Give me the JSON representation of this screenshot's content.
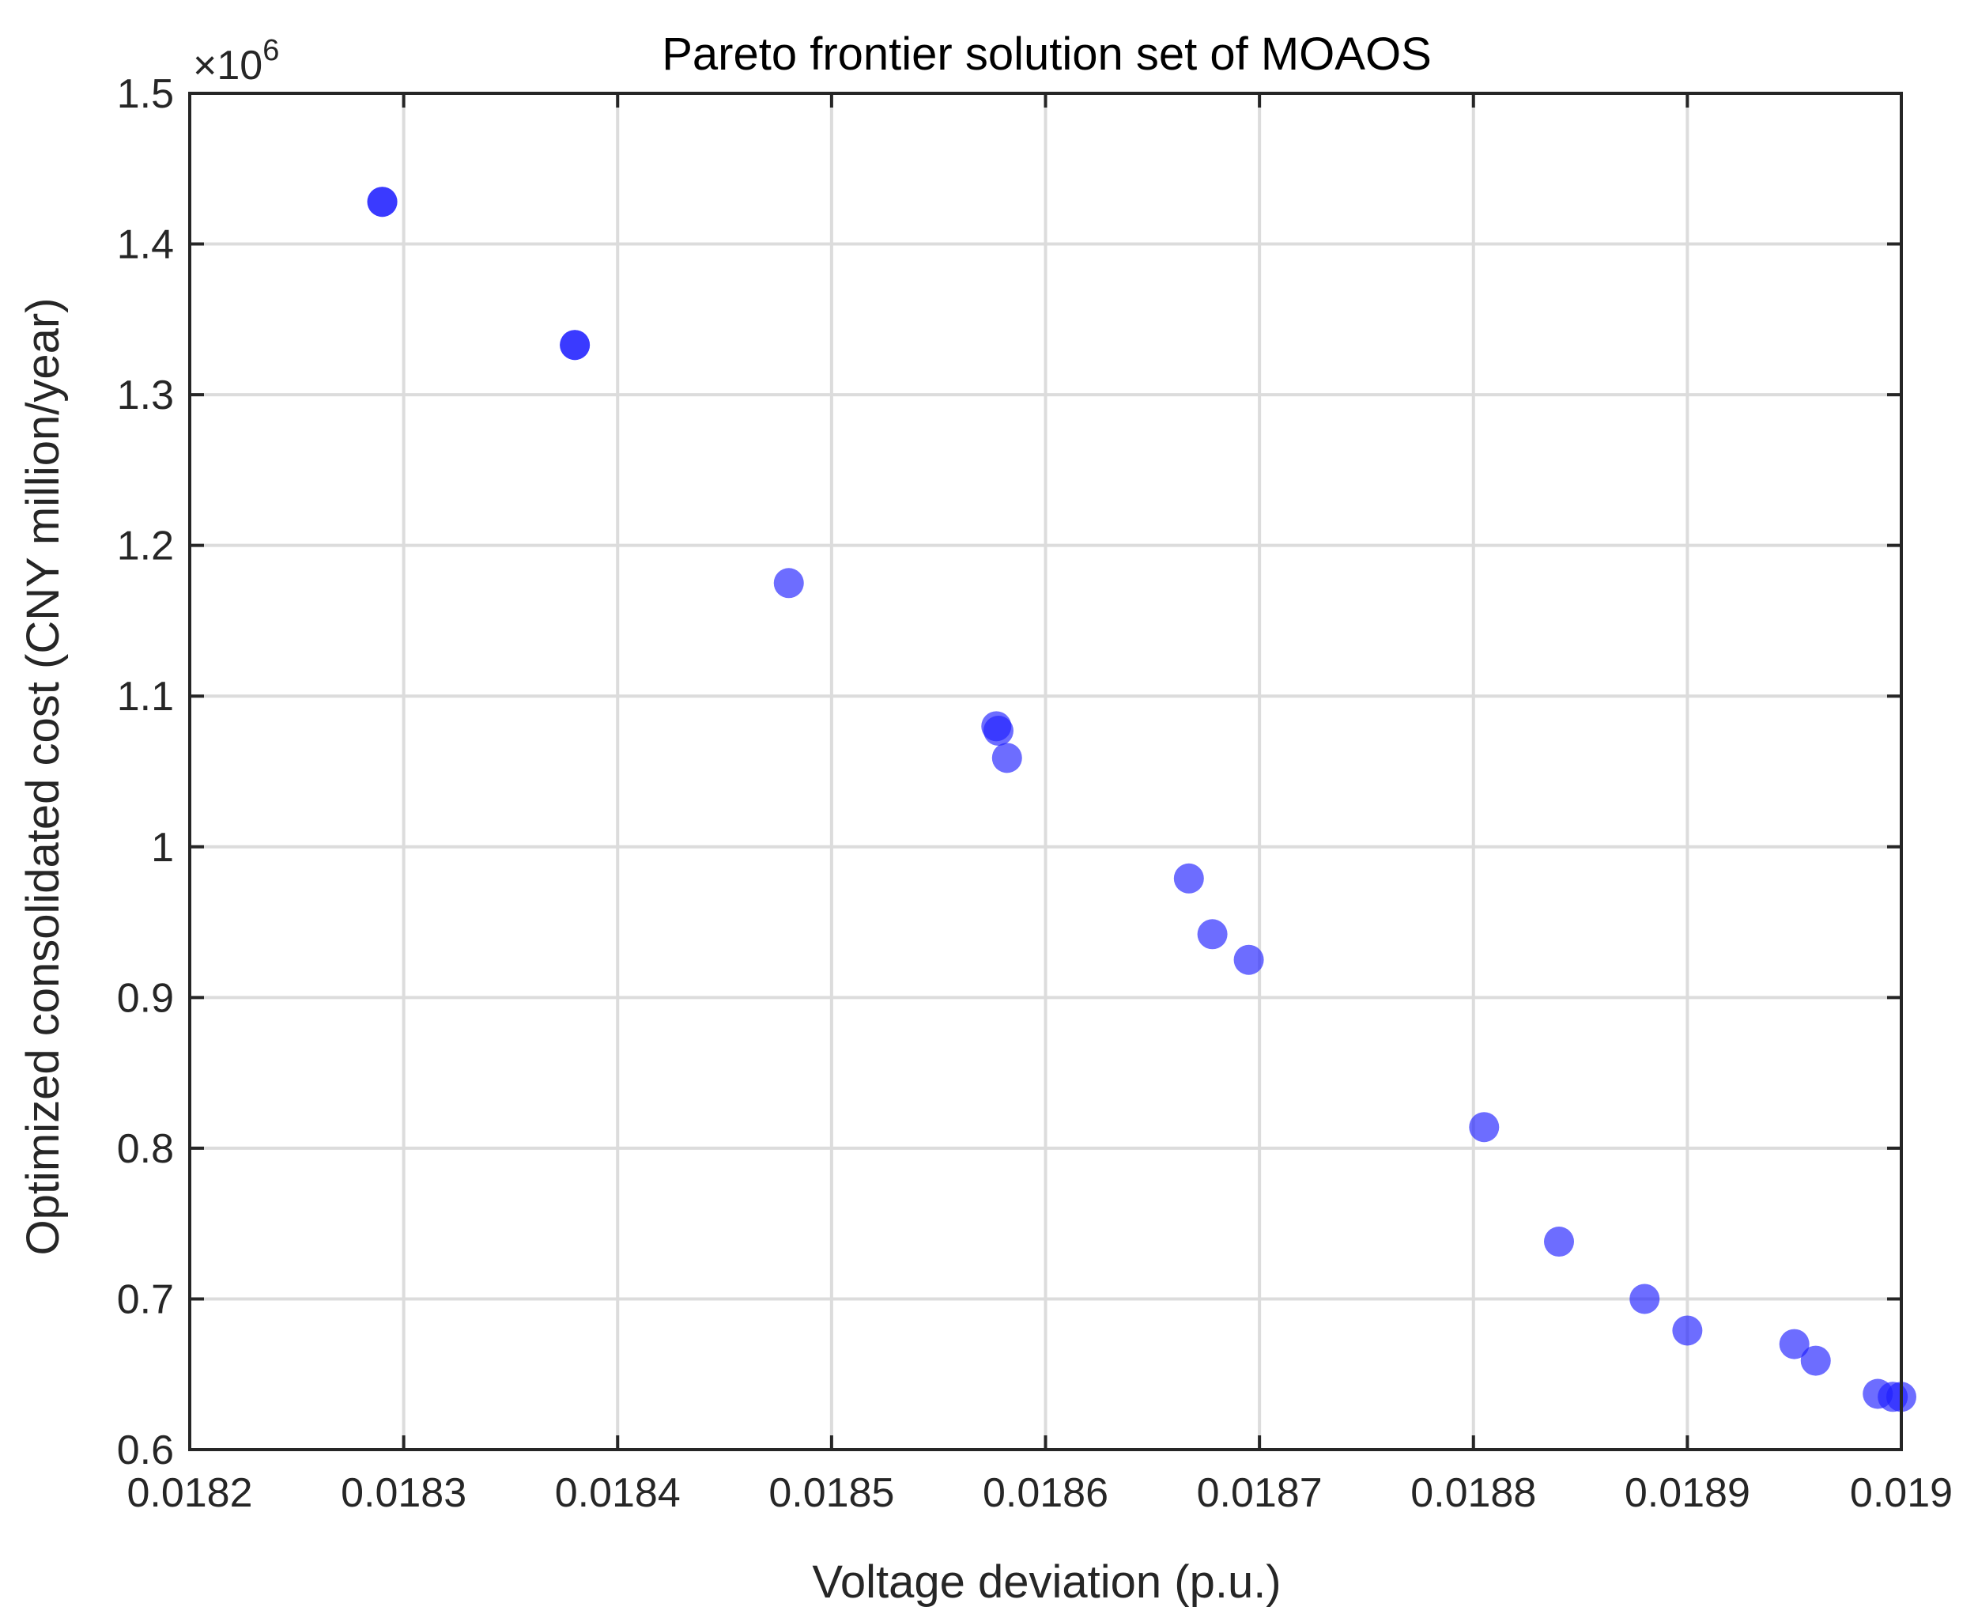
{
  "chart_data": {
    "type": "scatter",
    "title": "Pareto frontier solution set of MOAOS",
    "xlabel": "Voltage deviation (p.u.)",
    "ylabel": "Optimized consolidated cost (CNY million/year)",
    "xlim": [
      0.0182,
      0.019
    ],
    "ylim": [
      0.6,
      1.5
    ],
    "y_multiplier": "×10",
    "y_multiplier_exponent": "6",
    "x_ticks": [
      0.0182,
      0.0183,
      0.0184,
      0.0185,
      0.0186,
      0.0187,
      0.0188,
      0.0189,
      0.019
    ],
    "x_tick_labels": [
      "0.0182",
      "0.0183",
      "0.0184",
      "0.0185",
      "0.0186",
      "0.0187",
      "0.0188",
      "0.0189",
      "0.019"
    ],
    "y_ticks": [
      0.6,
      0.7,
      0.8,
      0.9,
      1.0,
      1.1,
      1.2,
      1.3,
      1.4,
      1.5
    ],
    "y_tick_labels": [
      "0.6",
      "0.7",
      "0.8",
      "0.9",
      "1",
      "1.1",
      "1.2",
      "1.3",
      "1.4",
      "1.5"
    ],
    "grid": true,
    "marker_color": "#1f1fff",
    "points": [
      {
        "x": 0.01829,
        "y": 1.428
      },
      {
        "x": 0.01829,
        "y": 1.428
      },
      {
        "x": 0.01838,
        "y": 1.333
      },
      {
        "x": 0.01838,
        "y": 1.333
      },
      {
        "x": 0.01848,
        "y": 1.175
      },
      {
        "x": 0.018577,
        "y": 1.08
      },
      {
        "x": 0.018578,
        "y": 1.077
      },
      {
        "x": 0.018582,
        "y": 1.059
      },
      {
        "x": 0.018667,
        "y": 0.979
      },
      {
        "x": 0.018678,
        "y": 0.942
      },
      {
        "x": 0.018695,
        "y": 0.925
      },
      {
        "x": 0.018805,
        "y": 0.814
      },
      {
        "x": 0.01884,
        "y": 0.738
      },
      {
        "x": 0.01888,
        "y": 0.7
      },
      {
        "x": 0.0189,
        "y": 0.679
      },
      {
        "x": 0.01895,
        "y": 0.67
      },
      {
        "x": 0.01896,
        "y": 0.659
      },
      {
        "x": 0.018989,
        "y": 0.637
      },
      {
        "x": 0.018996,
        "y": 0.635
      },
      {
        "x": 0.019,
        "y": 0.635
      }
    ]
  }
}
